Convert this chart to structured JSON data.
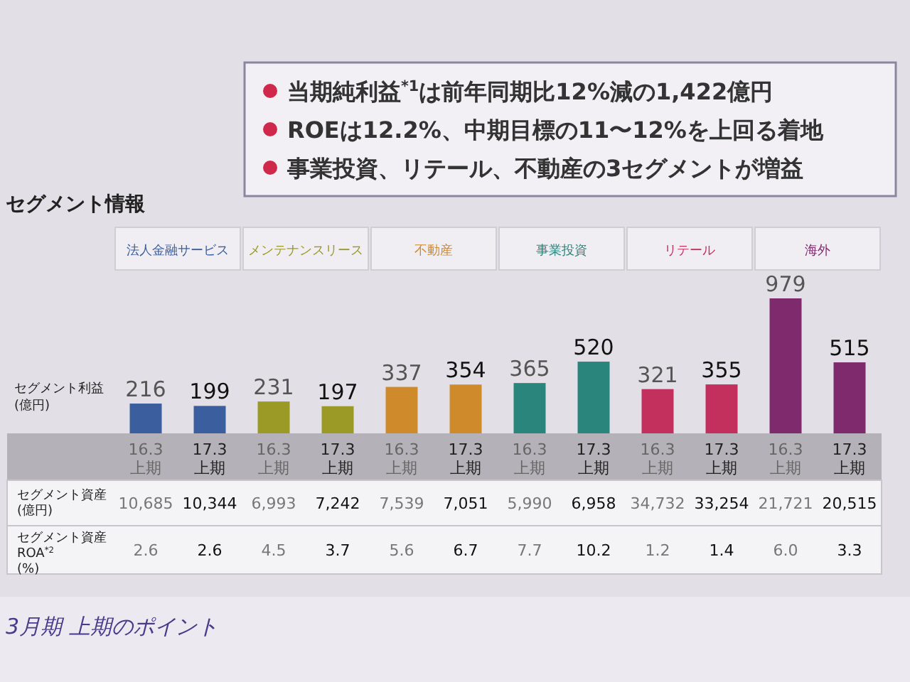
{
  "chart_data": {
    "type": "bar",
    "title": "セグメント情報",
    "ylabel": "セグメント利益 (億円)",
    "categories": [
      "16.3 上期",
      "17.3 上期",
      "16.3 上期",
      "17.3 上期",
      "16.3 上期",
      "17.3 上期",
      "16.3 上期",
      "17.3 上期",
      "16.3 上期",
      "17.3 上期",
      "16.3 上期",
      "17.3 上期"
    ],
    "values": [
      216,
      199,
      231,
      197,
      337,
      354,
      365,
      520,
      321,
      355,
      979,
      515
    ],
    "colors": [
      "#3b5e9e",
      "#3b5e9e",
      "#9c9a26",
      "#9c9a26",
      "#cf8a2c",
      "#cf8a2c",
      "#2a857d",
      "#2a857d",
      "#c4305e",
      "#c4305e",
      "#7e2a6c",
      "#7e2a6c"
    ],
    "data_labels": true,
    "annotations": [
      "当期純利益$^{*1}$は前年同期比12%減の1,422億円",
      "ROEは12.2%、中期目標の11〜12%を上回る着地",
      "事業投資、リテール、不動産の3セグメントが増益",
      "法人金融サービス",
      "メンテナンスリース",
      "不動産",
      "事業投資",
      "リテール",
      "海外",
      "セグメント資産 (億円)",
      "セグメント資産 ROA$^{*2}$ (%)",
      "10,685",
      "10,344",
      "6,993",
      "7,242",
      "7,539",
      "7,051",
      "5,990",
      "6,958",
      "34,732",
      "33,254",
      "21,721",
      "20,515",
      "2.6",
      "2.6",
      "4.5",
      "3.7",
      "5.6",
      "6.7",
      "7.7",
      "10.2",
      "1.2",
      "1.4",
      "6.0",
      "3.3",
      "3月期 上期のポイント"
    ]
  }
}
